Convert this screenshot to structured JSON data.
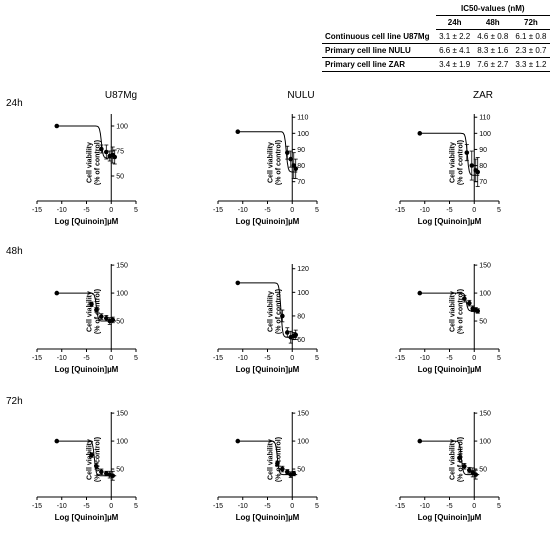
{
  "table": {
    "title": "IC50-values (nM)",
    "columns": [
      "24h",
      "48h",
      "72h"
    ],
    "rows": [
      {
        "label": "Continuous cell line U87Mg",
        "values": [
          "3.1 ± 2.2",
          "4.6 ± 0.8",
          "6.1 ± 0.8"
        ]
      },
      {
        "label": "Primary cell line NULU",
        "values": [
          "6.6 ± 4.1",
          "8.3 ± 1.6",
          "2.3 ± 0.7"
        ]
      },
      {
        "label": "Primary cell line ZAR",
        "values": [
          "3.4 ± 1.9",
          "7.6 ± 2.7",
          "3.3 ± 1.2"
        ]
      }
    ]
  },
  "row_labels": [
    "24h",
    "48h",
    "72h"
  ],
  "column_titles": [
    "U87Mg",
    "NULU",
    "ZAR"
  ],
  "chart_data": [
    {
      "type": "scatter",
      "panel": "24h-U87Mg",
      "xlabel": "Log [Quinoin]µM",
      "ylabel": "Cell viability\n(% of control)",
      "xlim": [
        -15,
        5
      ],
      "xticks": [
        -15,
        -10,
        -5,
        0,
        5
      ],
      "yticks": [
        50,
        75,
        100
      ],
      "ylim": [
        25,
        112
      ],
      "x": [
        -11,
        -2,
        -1,
        -0.3,
        0.3,
        0.7
      ],
      "y": [
        100,
        77,
        74,
        70,
        71,
        69
      ],
      "err": [
        0,
        4,
        7,
        5,
        8,
        7
      ],
      "fit": {
        "top": 100,
        "bottom": 68,
        "logx0": -2
      }
    },
    {
      "type": "scatter",
      "panel": "24h-NULU",
      "xlabel": "Log [Quinoin]µM",
      "ylabel": "Cell viability\n(% of control)",
      "xlim": [
        -15,
        5
      ],
      "xticks": [
        -15,
        -10,
        -5,
        0,
        5
      ],
      "yticks": [
        70,
        80,
        90,
        100,
        110
      ],
      "ylim": [
        58,
        112
      ],
      "x": [
        -11,
        -1,
        -0.3,
        0.3,
        0.7
      ],
      "y": [
        101,
        88,
        84,
        80,
        78
      ],
      "err": [
        0,
        4,
        5,
        8,
        6
      ],
      "fit": {
        "top": 101,
        "bottom": 76,
        "logx0": -1.2
      }
    },
    {
      "type": "scatter",
      "panel": "24h-ZAR",
      "xlabel": "Log [Quinoin]µM",
      "ylabel": "Cell viability\n(% of control)",
      "xlim": [
        -15,
        5
      ],
      "xticks": [
        -15,
        -10,
        -5,
        0,
        5
      ],
      "yticks": [
        70,
        80,
        90,
        100,
        110
      ],
      "ylim": [
        58,
        112
      ],
      "x": [
        -11,
        -1.5,
        -0.5,
        0.3,
        0.7
      ],
      "y": [
        100,
        88,
        80,
        77,
        76
      ],
      "err": [
        0,
        5,
        9,
        7,
        9
      ],
      "fit": {
        "top": 100,
        "bottom": 74,
        "logx0": -1.4
      }
    },
    {
      "type": "scatter",
      "panel": "48h-U87Mg",
      "xlabel": "Log [Quinoin]µM",
      "ylabel": "Cell viability\n(% of control)",
      "xlim": [
        -15,
        5
      ],
      "xticks": [
        -15,
        -10,
        -5,
        0,
        5
      ],
      "yticks": [
        50,
        100,
        150
      ],
      "ylim": [
        0,
        152
      ],
      "x": [
        -11,
        -4,
        -3,
        -2,
        -1,
        -0.3,
        0.3
      ],
      "y": [
        100,
        80,
        70,
        58,
        55,
        50,
        52
      ],
      "err": [
        0,
        4,
        4,
        5,
        5,
        6,
        5
      ],
      "fit": {
        "top": 100,
        "bottom": 50,
        "logx0": -3
      }
    },
    {
      "type": "scatter",
      "panel": "48h-NULU",
      "xlabel": "Log [Quinoin]µM",
      "ylabel": "Cell viability\n(% of control)",
      "xlim": [
        -15,
        5
      ],
      "xticks": [
        -15,
        -10,
        -5,
        0,
        5
      ],
      "yticks": [
        60,
        80,
        100,
        120
      ],
      "ylim": [
        52,
        124
      ],
      "x": [
        -11,
        -2,
        -1,
        -0.3,
        0.3,
        0.7
      ],
      "y": [
        108,
        80,
        66,
        62,
        63,
        64
      ],
      "err": [
        0,
        5,
        4,
        5,
        3,
        4
      ],
      "fit": {
        "top": 108,
        "bottom": 62,
        "logx0": -2.3
      }
    },
    {
      "type": "scatter",
      "panel": "48h-ZAR",
      "xlabel": "Log [Quinoin]µM",
      "ylabel": "Cell viability\n(% of control)",
      "xlim": [
        -15,
        5
      ],
      "xticks": [
        -15,
        -10,
        -5,
        0,
        5
      ],
      "yticks": [
        50,
        100,
        150
      ],
      "ylim": [
        0,
        152
      ],
      "x": [
        -11,
        -2,
        -1,
        -0.3,
        0.3,
        0.7
      ],
      "y": [
        100,
        90,
        82,
        72,
        70,
        68
      ],
      "err": [
        0,
        6,
        5,
        5,
        4,
        4
      ],
      "fit": {
        "top": 100,
        "bottom": 68,
        "logx0": -1.6
      }
    },
    {
      "type": "scatter",
      "panel": "72h-U87Mg",
      "xlabel": "Log [Quinoin]µM",
      "ylabel": "Cell viability\n(% of control)",
      "xlim": [
        -15,
        5
      ],
      "xticks": [
        -15,
        -10,
        -5,
        0,
        5
      ],
      "yticks": [
        50,
        100,
        150
      ],
      "ylim": [
        0,
        152
      ],
      "x": [
        -11,
        -4,
        -3,
        -2,
        -1,
        -0.3,
        0.3
      ],
      "y": [
        100,
        75,
        55,
        45,
        42,
        40,
        38
      ],
      "err": [
        0,
        4,
        5,
        5,
        4,
        6,
        8
      ],
      "fit": {
        "top": 100,
        "bottom": 38,
        "logx0": -3.4
      }
    },
    {
      "type": "scatter",
      "panel": "72h-NULU",
      "xlabel": "Log [Quinoin]µM",
      "ylabel": "Cell viability\n(% of control)",
      "xlim": [
        -15,
        5
      ],
      "xticks": [
        -15,
        -10,
        -5,
        0,
        5
      ],
      "yticks": [
        50,
        100,
        150
      ],
      "ylim": [
        0,
        152
      ],
      "x": [
        -11,
        -3,
        -2,
        -1,
        -0.3,
        0.3
      ],
      "y": [
        100,
        60,
        50,
        45,
        40,
        42
      ],
      "err": [
        0,
        4,
        5,
        4,
        5,
        4
      ],
      "fit": {
        "top": 100,
        "bottom": 40,
        "logx0": -3
      }
    },
    {
      "type": "scatter",
      "panel": "72h-ZAR",
      "xlabel": "Log [Quinoin]µM",
      "ylabel": "Cell viability\n(% of control)",
      "xlim": [
        -15,
        5
      ],
      "xticks": [
        -15,
        -10,
        -5,
        0,
        5
      ],
      "yticks": [
        50,
        100,
        150
      ],
      "ylim": [
        0,
        152
      ],
      "x": [
        -11,
        -3,
        -2,
        -1,
        -0.3,
        0.3
      ],
      "y": [
        100,
        70,
        55,
        48,
        44,
        40
      ],
      "err": [
        0,
        6,
        5,
        5,
        8,
        8
      ],
      "fit": {
        "top": 100,
        "bottom": 40,
        "logx0": -2.6
      }
    }
  ]
}
